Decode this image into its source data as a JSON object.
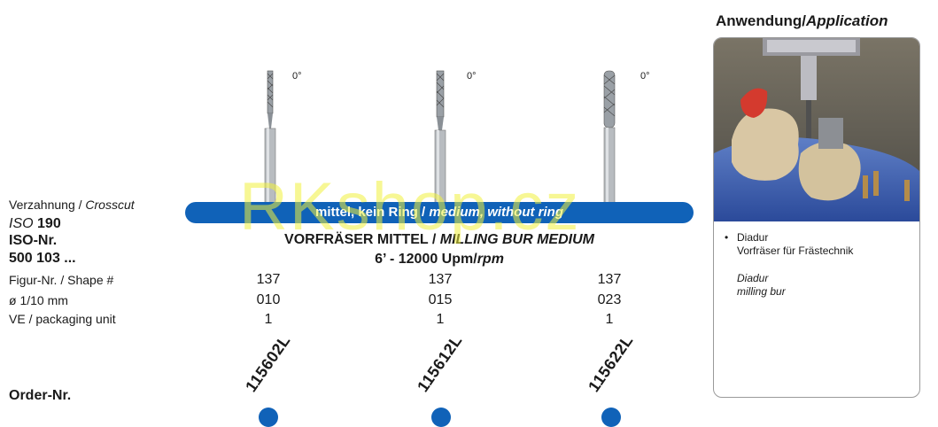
{
  "labels": {
    "crosscut_de": "Verzahnung /",
    "crosscut_en": "Crosscut",
    "iso_prefix": "ISO",
    "iso_value": "190",
    "iso_nr": "ISO-Nr.",
    "iso_code": "500 103 ...",
    "figure": "Figur-Nr. / Shape #",
    "diameter": "ø 1/10 mm",
    "packaging": "VE / packaging unit",
    "order": "Order-Nr."
  },
  "band": {
    "text_de": "mittel, kein Ring /",
    "text_en": "medium, without ring"
  },
  "product": {
    "title_de": "VORFRÄSER MITTEL /",
    "title_en": "MILLING BUR MEDIUM",
    "speed_de": "6’ - 12000 Upm/",
    "speed_en": "rpm"
  },
  "columns": [
    {
      "angle": "0°",
      "shape": "137",
      "diameter": "010",
      "packaging": "1",
      "order_nr": "115602L"
    },
    {
      "angle": "0°",
      "shape": "137",
      "diameter": "015",
      "packaging": "1",
      "order_nr": "115612L"
    },
    {
      "angle": "0°",
      "shape": "137",
      "diameter": "023",
      "packaging": "1",
      "order_nr": "115622L"
    }
  ],
  "application": {
    "heading_de": "Anwendung/",
    "heading_en": "Application",
    "bullet": "•",
    "line1": "Diadur",
    "line2": "Vorfräser für Frästechnik",
    "line3": "Diadur",
    "line4": "milling bur"
  },
  "watermark": "RKshop.cz",
  "colors": {
    "accent": "#1062b8"
  }
}
